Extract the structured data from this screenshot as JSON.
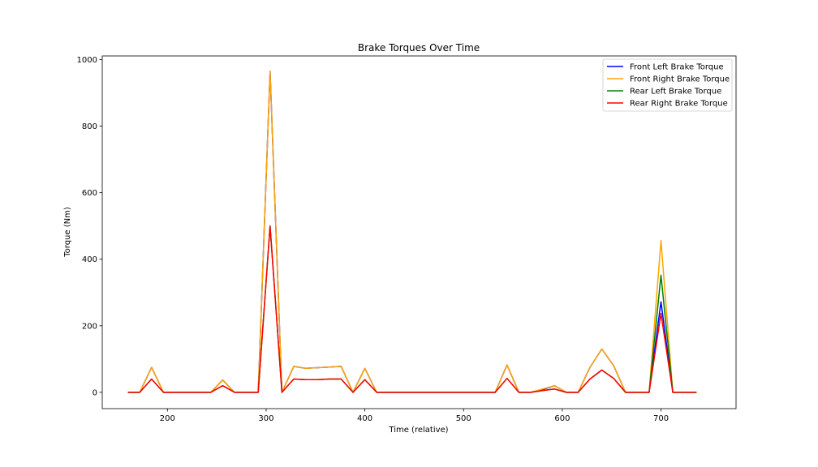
{
  "chart_data": {
    "type": "line",
    "title": "Brake Torques Over Time",
    "xlabel": "Time (relative)",
    "ylabel": "Torque (Nm)",
    "xlim": [
      134,
      776
    ],
    "ylim": [
      -49,
      1011
    ],
    "xticks": [
      200,
      300,
      400,
      500,
      600,
      700
    ],
    "yticks": [
      0,
      200,
      400,
      600,
      800,
      1000
    ],
    "grid": false,
    "legend_position": "top-right",
    "x": [
      160,
      172,
      184,
      196,
      208,
      220,
      232,
      244,
      256,
      268,
      280,
      292,
      304,
      316,
      328,
      340,
      352,
      364,
      376,
      388,
      400,
      412,
      424,
      436,
      448,
      460,
      472,
      484,
      496,
      508,
      520,
      532,
      544,
      556,
      568,
      580,
      592,
      604,
      616,
      628,
      640,
      652,
      664,
      676,
      688,
      700,
      712,
      724,
      736
    ],
    "series": [
      {
        "name": "Front Left Brake Torque",
        "color": "#0000ff",
        "values": [
          0,
          0,
          75,
          0,
          0,
          0,
          0,
          0,
          37,
          0,
          0,
          0,
          965,
          0,
          78,
          72,
          74,
          76,
          78,
          0,
          72,
          0,
          0,
          0,
          0,
          0,
          0,
          0,
          0,
          0,
          0,
          0,
          82,
          0,
          0,
          8,
          20,
          0,
          0,
          75,
          130,
          80,
          0,
          0,
          0,
          272,
          0,
          0,
          0
        ]
      },
      {
        "name": "Front Right Brake Torque",
        "color": "#ffa500",
        "values": [
          0,
          0,
          75,
          0,
          0,
          0,
          0,
          0,
          37,
          0,
          0,
          0,
          965,
          0,
          78,
          72,
          74,
          76,
          78,
          0,
          72,
          0,
          0,
          0,
          0,
          0,
          0,
          0,
          0,
          0,
          0,
          0,
          82,
          0,
          0,
          10,
          20,
          0,
          0,
          75,
          130,
          80,
          0,
          0,
          0,
          456,
          0,
          0,
          0
        ]
      },
      {
        "name": "Rear Left Brake Torque",
        "color": "#008000",
        "values": [
          0,
          0,
          40,
          0,
          0,
          0,
          0,
          0,
          20,
          0,
          0,
          0,
          500,
          0,
          40,
          38,
          38,
          40,
          40,
          0,
          38,
          0,
          0,
          0,
          0,
          0,
          0,
          0,
          0,
          0,
          0,
          0,
          42,
          0,
          0,
          5,
          10,
          0,
          0,
          40,
          67,
          42,
          0,
          0,
          0,
          352,
          0,
          0,
          0
        ]
      },
      {
        "name": "Rear Right Brake Torque",
        "color": "#ff0000",
        "values": [
          0,
          0,
          40,
          0,
          0,
          0,
          0,
          0,
          20,
          0,
          0,
          0,
          500,
          0,
          40,
          38,
          38,
          40,
          40,
          0,
          38,
          0,
          0,
          0,
          0,
          0,
          0,
          0,
          0,
          0,
          0,
          0,
          42,
          0,
          0,
          5,
          10,
          0,
          0,
          40,
          67,
          42,
          0,
          0,
          0,
          237,
          0,
          0,
          0
        ]
      }
    ]
  }
}
